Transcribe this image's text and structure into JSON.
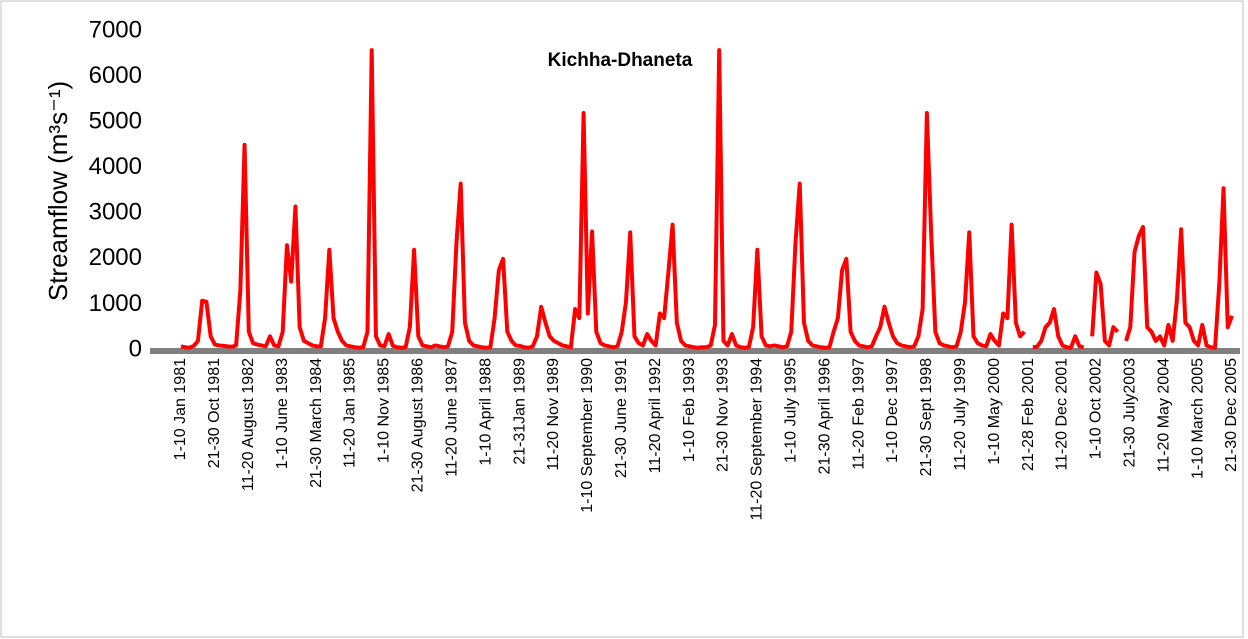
{
  "chart_data": {
    "type": "line",
    "title": "Kichha-Dhaneta",
    "y_label": "Streamflow (m³s⁻¹)",
    "categories": [
      "1-10 Jan 1981",
      null,
      null,
      null,
      null,
      null,
      null,
      null,
      "21-30 Oct 1981",
      null,
      null,
      null,
      null,
      null,
      null,
      null,
      "11-20 August 1982",
      null,
      null,
      null,
      null,
      null,
      null,
      null,
      "1-10 June 1983",
      null,
      null,
      null,
      null,
      null,
      null,
      null,
      "21-30 March 1984",
      null,
      null,
      null,
      null,
      null,
      null,
      null,
      "11-20 Jan 1985",
      null,
      null,
      null,
      null,
      null,
      null,
      null,
      "1-10 Nov 1985",
      null,
      null,
      null,
      null,
      null,
      null,
      null,
      "21-30 August 1986",
      null,
      null,
      null,
      null,
      null,
      null,
      null,
      "11-20 June 1987",
      null,
      null,
      null,
      null,
      null,
      null,
      null,
      "1-10 April 1988",
      null,
      null,
      null,
      null,
      null,
      null,
      null,
      "21-31Jan 1989",
      null,
      null,
      null,
      null,
      null,
      null,
      null,
      "11-20 Nov 1989",
      null,
      null,
      null,
      null,
      null,
      null,
      null,
      "1-10 September 1990",
      null,
      null,
      null,
      null,
      null,
      null,
      null,
      "21-30 June 1991",
      null,
      null,
      null,
      null,
      null,
      null,
      null,
      "11-20 April 1992",
      null,
      null,
      null,
      null,
      null,
      null,
      null,
      "1-10 Feb 1993",
      null,
      null,
      null,
      null,
      null,
      null,
      null,
      "21-30 Nov 1993",
      null,
      null,
      null,
      null,
      null,
      null,
      null,
      "11-20 September 1994",
      null,
      null,
      null,
      null,
      null,
      null,
      null,
      "1-10 July 1995",
      null,
      null,
      null,
      null,
      null,
      null,
      null,
      "21-30 April 1996",
      null,
      null,
      null,
      null,
      null,
      null,
      null,
      "11-20 Feb 1997",
      null,
      null,
      null,
      null,
      null,
      null,
      null,
      "1-10 Dec 1997",
      null,
      null,
      null,
      null,
      null,
      null,
      null,
      "21-30 Sept 1998",
      null,
      null,
      null,
      null,
      null,
      null,
      null,
      "11-20 July 1999",
      null,
      null,
      null,
      null,
      null,
      null,
      null,
      "1-10 May 2000",
      null,
      null,
      null,
      null,
      null,
      null,
      null,
      "21-28 Feb 2001",
      null,
      null,
      null,
      null,
      null,
      null,
      null,
      "11-20 Dec 2001",
      null,
      null,
      null,
      null,
      null,
      null,
      null,
      "1-10 Oct 2002",
      null,
      null,
      null,
      null,
      null,
      null,
      null,
      "21-30 July2003",
      null,
      null,
      null,
      null,
      null,
      null,
      null,
      "11-20 May 2004",
      null,
      null,
      null,
      null,
      null,
      null,
      null,
      "1-10 March 2005",
      null,
      null,
      null,
      null,
      null,
      null,
      null,
      "21-30 Dec 2005"
    ],
    "series": [
      {
        "color": "#ff0000",
        "values": [
          80,
          60,
          50,
          90,
          200,
          1080,
          1060,
          300,
          120,
          100,
          90,
          80,
          70,
          100,
          1300,
          4500,
          400,
          150,
          120,
          100,
          80,
          300,
          100,
          80,
          400,
          2300,
          1500,
          3150,
          500,
          200,
          150,
          100,
          80,
          80,
          700,
          2200,
          700,
          400,
          200,
          100,
          80,
          60,
          50,
          60,
          400,
          6580,
          300,
          100,
          80,
          350,
          90,
          60,
          50,
          60,
          500,
          2200,
          300,
          100,
          80,
          60,
          100,
          80,
          60,
          80,
          400,
          2350,
          3650,
          600,
          200,
          100,
          80,
          60,
          50,
          60,
          700,
          1750,
          2000,
          400,
          200,
          100,
          90,
          60,
          50,
          80,
          300,
          950,
          600,
          300,
          200,
          150,
          100,
          80,
          60,
          900,
          700,
          5200,
          800,
          2600,
          400,
          150,
          100,
          80,
          60,
          80,
          400,
          1050,
          2580,
          300,
          150,
          100,
          350,
          200,
          100,
          800,
          700,
          1700,
          2750,
          600,
          200,
          100,
          80,
          60,
          50,
          60,
          60,
          100,
          550,
          6580,
          200,
          100,
          350,
          100,
          60,
          50,
          60,
          500,
          2200,
          300,
          100,
          80,
          100,
          80,
          60,
          80,
          400,
          2350,
          3650,
          600,
          200,
          100,
          80,
          60,
          50,
          60,
          400,
          700,
          1750,
          2000,
          400,
          200,
          100,
          80,
          60,
          80,
          300,
          500,
          950,
          600,
          300,
          150,
          100,
          80,
          60,
          80,
          300,
          900,
          5200,
          2600,
          400,
          150,
          100,
          80,
          60,
          80,
          400,
          1050,
          2580,
          300,
          150,
          100,
          80,
          350,
          200,
          100,
          800,
          700,
          2750,
          600,
          300,
          400,
          null,
          60,
          70,
          200,
          500,
          600,
          900,
          300,
          100,
          60,
          50,
          300,
          80,
          60,
          null,
          300,
          1700,
          1450,
          200,
          100,
          500,
          400,
          null,
          200,
          500,
          2150,
          2500,
          2700,
          500,
          400,
          200,
          300,
          100,
          550,
          200,
          1100,
          2650,
          600,
          500,
          200,
          100,
          550,
          100,
          60,
          50,
          1450,
          3550,
          500,
          750
        ]
      }
    ],
    "ylim": [
      0,
      7000
    ],
    "yticks": [
      0,
      1000,
      2000,
      3000,
      4000,
      5000,
      6000,
      7000
    ],
    "grid": false
  }
}
